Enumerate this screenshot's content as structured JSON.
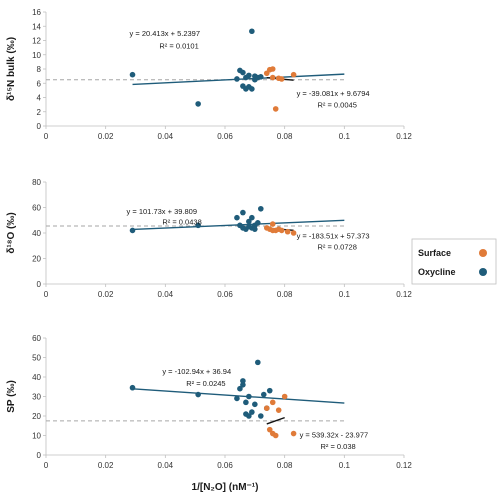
{
  "figure": {
    "xlabel": "1/[N₂O] (nM⁻¹)",
    "legend": {
      "placement": "right",
      "items": [
        {
          "label": "Surface",
          "color": "#E07B39"
        },
        {
          "label": "Oxycline",
          "color": "#1F5C7A"
        }
      ]
    }
  },
  "chart_data": [
    {
      "type": "scatter",
      "ylabel": "δ¹⁵N bulk (‰)",
      "xlim": [
        0,
        0.12
      ],
      "ylim": [
        0,
        16
      ],
      "xticks": [
        "0",
        "0.02",
        "0.04",
        "0.06",
        "0.08",
        "0.1",
        "0.12"
      ],
      "yticks": [
        "0",
        "2",
        "4",
        "6",
        "8",
        "10",
        "12",
        "14",
        "16"
      ],
      "series": [
        {
          "name": "Oxycline",
          "color": "#1F5C7A",
          "points": [
            [
              0.029,
              7.2
            ],
            [
              0.051,
              3.1
            ],
            [
              0.064,
              6.6
            ],
            [
              0.065,
              7.8
            ],
            [
              0.066,
              7.5
            ],
            [
              0.066,
              5.6
            ],
            [
              0.067,
              5.2
            ],
            [
              0.067,
              6.8
            ],
            [
              0.068,
              7.1
            ],
            [
              0.068,
              5.5
            ],
            [
              0.069,
              13.3
            ],
            [
              0.069,
              5.2
            ],
            [
              0.07,
              6.5
            ],
            [
              0.07,
              7.0
            ],
            [
              0.071,
              6.8
            ],
            [
              0.072,
              6.9
            ]
          ]
        },
        {
          "name": "Surface",
          "color": "#E07B39",
          "points": [
            [
              0.074,
              7.4
            ],
            [
              0.075,
              7.9
            ],
            [
              0.076,
              8.0
            ],
            [
              0.076,
              6.8
            ],
            [
              0.077,
              2.4
            ],
            [
              0.078,
              6.7
            ],
            [
              0.079,
              6.6
            ],
            [
              0.083,
              7.2
            ]
          ]
        }
      ],
      "reference_line": {
        "y": 6.5,
        "style": "dashed",
        "color": "#A6A6A6"
      },
      "fits": [
        {
          "series": "Oxycline",
          "x_range": [
            0.029,
            0.1
          ],
          "slope": 20.413,
          "intercept": 5.2397,
          "color": "#1F5C7A"
        },
        {
          "series": "Surface",
          "x_range": [
            0.074,
            0.083
          ],
          "slope": -39.081,
          "intercept": 9.6794,
          "color": "#111111"
        }
      ],
      "annotations": [
        {
          "text": "y = 20.413x + 5.2397",
          "x": 0.028,
          "y": 12.6
        },
        {
          "text": "R² = 0.0101",
          "x": 0.038,
          "y": 10.9
        },
        {
          "text": "y = -39.081x + 9.6794",
          "x": 0.084,
          "y": 4.2
        },
        {
          "text": "R² = 0.0045",
          "x": 0.091,
          "y": 2.6
        }
      ]
    },
    {
      "type": "scatter",
      "ylabel": "δ¹⁸O (‰)",
      "xlim": [
        0,
        0.12
      ],
      "ylim": [
        0,
        80
      ],
      "xticks": [
        "0",
        "0.02",
        "0.04",
        "0.06",
        "0.08",
        "0.1",
        "0.12"
      ],
      "yticks": [
        "0",
        "20",
        "40",
        "60",
        "80"
      ],
      "series": [
        {
          "name": "Oxycline",
          "color": "#1F5C7A",
          "points": [
            [
              0.029,
              42
            ],
            [
              0.051,
              46
            ],
            [
              0.064,
              52
            ],
            [
              0.065,
              46
            ],
            [
              0.066,
              56
            ],
            [
              0.066,
              44
            ],
            [
              0.067,
              43
            ],
            [
              0.068,
              49
            ],
            [
              0.068,
              45
            ],
            [
              0.069,
              44
            ],
            [
              0.069,
              52
            ],
            [
              0.07,
              43
            ],
            [
              0.07,
              46
            ],
            [
              0.071,
              48
            ],
            [
              0.072,
              59
            ]
          ]
        },
        {
          "name": "Surface",
          "color": "#E07B39",
          "points": [
            [
              0.074,
              44
            ],
            [
              0.075,
              43
            ],
            [
              0.076,
              42
            ],
            [
              0.076,
              47
            ],
            [
              0.077,
              42
            ],
            [
              0.078,
              43
            ],
            [
              0.079,
              42
            ],
            [
              0.081,
              41
            ],
            [
              0.083,
              40
            ]
          ]
        }
      ],
      "reference_line": {
        "y": 45.5,
        "style": "dashed",
        "color": "#A6A6A6"
      },
      "fits": [
        {
          "series": "Oxycline",
          "x_range": [
            0.029,
            0.1
          ],
          "slope": 101.73,
          "intercept": 39.809,
          "color": "#1F5C7A"
        },
        {
          "series": "Surface",
          "x_range": [
            0.074,
            0.083
          ],
          "slope": -183.51,
          "intercept": 57.373,
          "color": "#111111"
        }
      ],
      "annotations": [
        {
          "text": "y = 101.73x + 39.809",
          "x": 0.027,
          "y": 55
        },
        {
          "text": "R² = 0.0438",
          "x": 0.039,
          "y": 46.5
        },
        {
          "text": "y = -183.51x + 57.373",
          "x": 0.084,
          "y": 35.5
        },
        {
          "text": "R² = 0.0728",
          "x": 0.091,
          "y": 27
        }
      ]
    },
    {
      "type": "scatter",
      "ylabel": "SP (‰)",
      "xlim": [
        0,
        0.12
      ],
      "ylim": [
        0,
        60
      ],
      "xticks": [
        "0",
        "0.02",
        "0.04",
        "0.06",
        "0.08",
        "0.1",
        "0.12"
      ],
      "yticks": [
        "0",
        "10",
        "20",
        "30",
        "40",
        "50",
        "60"
      ],
      "series": [
        {
          "name": "Oxycline",
          "color": "#1F5C7A",
          "points": [
            [
              0.029,
              34.5
            ],
            [
              0.051,
              31
            ],
            [
              0.064,
              29
            ],
            [
              0.065,
              34
            ],
            [
              0.066,
              36
            ],
            [
              0.066,
              38
            ],
            [
              0.067,
              21
            ],
            [
              0.067,
              27
            ],
            [
              0.068,
              30
            ],
            [
              0.068,
              20
            ],
            [
              0.069,
              22
            ],
            [
              0.07,
              26
            ],
            [
              0.071,
              47.5
            ],
            [
              0.072,
              20
            ],
            [
              0.073,
              31
            ],
            [
              0.074,
              24
            ],
            [
              0.075,
              33
            ]
          ]
        },
        {
          "name": "Surface",
          "color": "#E07B39",
          "points": [
            [
              0.074,
              24
            ],
            [
              0.075,
              13
            ],
            [
              0.076,
              11
            ],
            [
              0.076,
              27
            ],
            [
              0.077,
              10
            ],
            [
              0.078,
              23
            ],
            [
              0.08,
              30
            ],
            [
              0.083,
              11
            ]
          ]
        }
      ],
      "reference_line": {
        "y": 17.5,
        "style": "dashed",
        "color": "#A6A6A6"
      },
      "fits": [
        {
          "series": "Oxycline",
          "x_range": [
            0.029,
            0.1
          ],
          "slope": -102.94,
          "intercept": 36.94,
          "color": "#1F5C7A"
        },
        {
          "series": "Surface",
          "x_range": [
            0.074,
            0.08
          ],
          "slope": 539.32,
          "intercept": -23.977,
          "color": "#111111"
        }
      ],
      "annotations": [
        {
          "text": "y = -102.94x + 36.94",
          "x": 0.039,
          "y": 41.5
        },
        {
          "text": "R² = 0.0245",
          "x": 0.047,
          "y": 35.5
        },
        {
          "text": "y = 539.32x - 23.977",
          "x": 0.085,
          "y": 9
        },
        {
          "text": "R² = 0.038",
          "x": 0.092,
          "y": 3
        }
      ]
    }
  ]
}
